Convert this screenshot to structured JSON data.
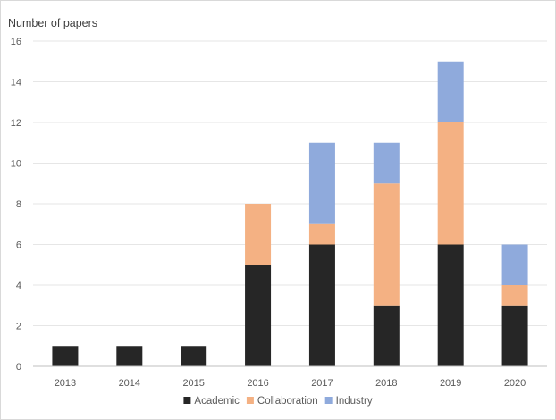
{
  "chart_data": {
    "type": "bar",
    "stacked": true,
    "title": "",
    "xlabel": "",
    "ylabel": "Number of papers",
    "ylim": [
      0,
      16
    ],
    "yticks": [
      0,
      2,
      4,
      6,
      8,
      10,
      12,
      14,
      16
    ],
    "y_tick_labels": [
      "0",
      "2",
      "4",
      "6",
      "8",
      "10",
      "12",
      "14",
      "16"
    ],
    "categories": [
      "2013",
      "2014",
      "2015",
      "2016",
      "2017",
      "2018",
      "2019",
      "2020"
    ],
    "series": [
      {
        "name": "Academic",
        "color": "#262626",
        "values": [
          1,
          1,
          1,
          5,
          6,
          3,
          6,
          3
        ]
      },
      {
        "name": "Collaboration",
        "color": "#f4b183",
        "values": [
          0,
          0,
          0,
          3,
          1,
          6,
          6,
          1
        ]
      },
      {
        "name": "Industry",
        "color": "#8faadc",
        "values": [
          0,
          0,
          0,
          0,
          4,
          2,
          3,
          2
        ]
      }
    ],
    "grid": true,
    "legend_position": "bottom"
  }
}
